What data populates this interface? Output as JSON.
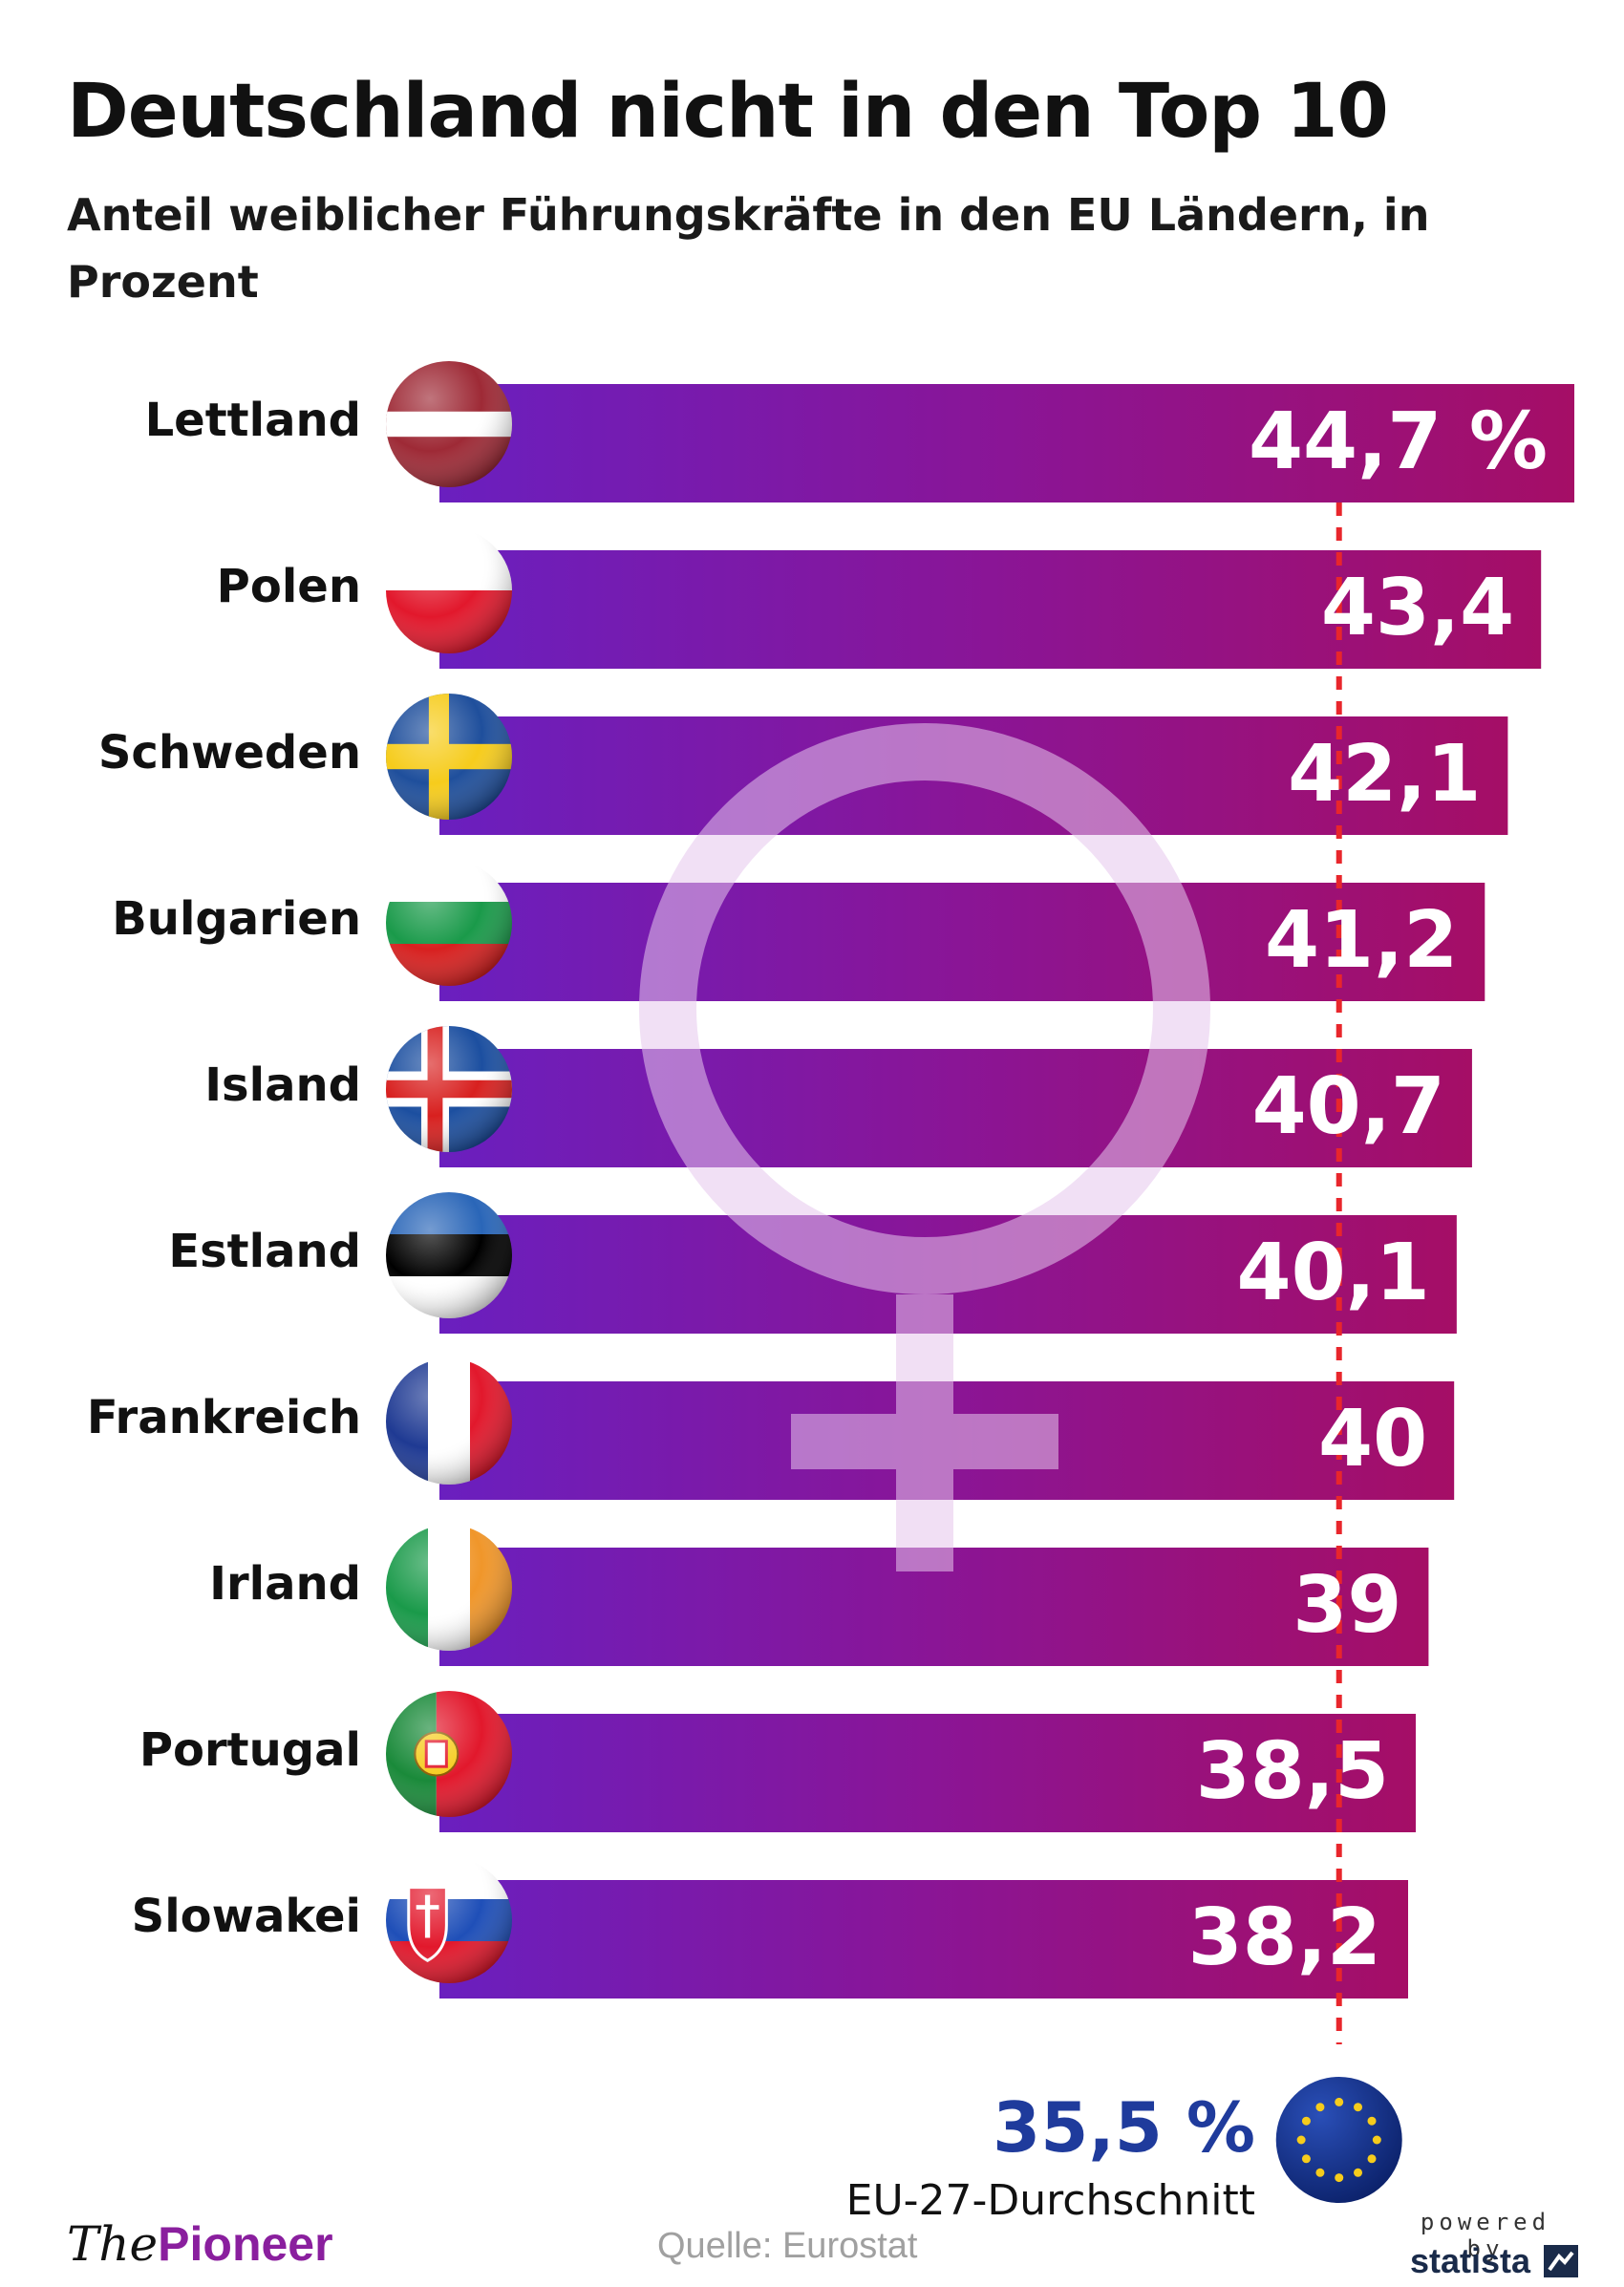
{
  "title": "Deutschland nicht in den Top 10",
  "subtitle": "Anteil weiblicher Führungskräfte in den EU Ländern, in Prozent",
  "chart_data": {
    "type": "bar",
    "orientation": "horizontal",
    "unit": "%",
    "categories": [
      "Lettland",
      "Polen",
      "Schweden",
      "Bulgarien",
      "Island",
      "Estland",
      "Frankreich",
      "Irland",
      "Portugal",
      "Slowakei"
    ],
    "values": [
      44.7,
      43.4,
      42.1,
      41.2,
      40.7,
      40.1,
      40,
      39,
      38.5,
      38.2
    ],
    "value_labels": [
      "44,7 %",
      "43,4",
      "42,1",
      "41,2",
      "40,7",
      "40,1",
      "40",
      "39",
      "38,5",
      "38,2"
    ],
    "reference_line": {
      "value": 35.5,
      "label": "35,5 %",
      "sublabel": "EU-27-Durchschnitt"
    },
    "colors": {
      "bar_start": "#6a1fbf",
      "bar_mid": "#8a1596",
      "bar_end": "#a50e66",
      "reference_line": "#e8262c",
      "reference_label": "#1f3b9c"
    }
  },
  "footer": {
    "brand_prefix": "The",
    "brand_name": "Pioneer",
    "source": "Quelle: Eurostat",
    "powered_by": "powered by",
    "statista": "statista"
  },
  "icons": [
    "female-symbol-icon",
    "flag-icon",
    "eu-flag-icon",
    "statista-logo-icon"
  ]
}
